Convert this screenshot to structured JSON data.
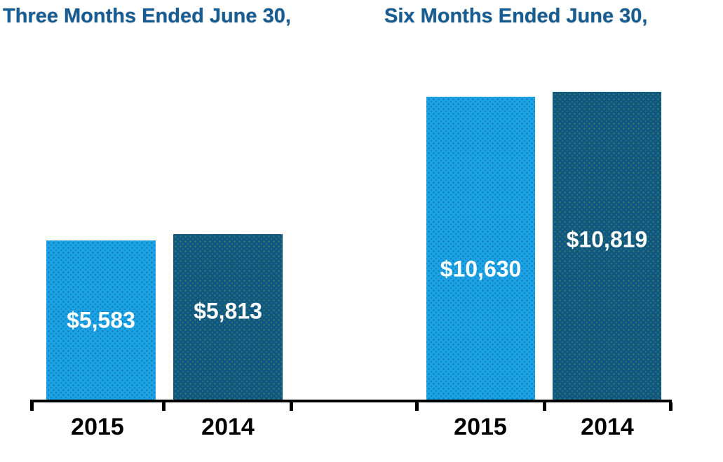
{
  "chart_data": {
    "type": "bar",
    "groups": [
      {
        "title": "Three Months Ended June 30,",
        "categories": [
          "2015",
          "2014"
        ],
        "bars": [
          {
            "category": "2015",
            "series": "2015",
            "value": 5583,
            "label": "$5,583",
            "label_pos_frac": 0.5
          },
          {
            "category": "2014",
            "series": "2014",
            "value": 5813,
            "label": "$5,813",
            "label_pos_frac": 0.465
          }
        ]
      },
      {
        "title": "Six Months Ended June 30,",
        "categories": [
          "2015",
          "2014"
        ],
        "bars": [
          {
            "category": "2015",
            "series": "2015",
            "value": 10630,
            "label": "$10,630",
            "label_pos_frac": 0.57
          },
          {
            "category": "2014",
            "series": "2014",
            "value": 10819,
            "label": "$10,819",
            "label_pos_frac": 0.48
          }
        ]
      }
    ],
    "series_colors": {
      "2015": "#1BA3E5",
      "2014": "#0F5680"
    },
    "value_label_color": "#FFFFFF",
    "year_label_color": "#000000",
    "title_color": "#165D94",
    "axis_color": "#000000",
    "ylim": [
      0,
      14000
    ],
    "grid": false,
    "legend_position": "none"
  }
}
